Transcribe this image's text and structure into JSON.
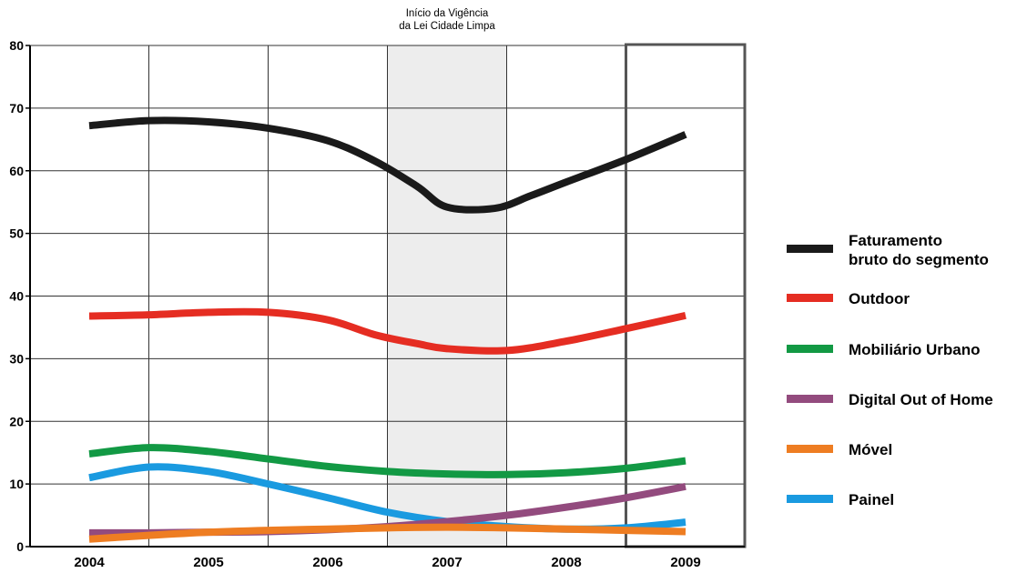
{
  "chart_data": {
    "type": "line",
    "annotation": {
      "lines": [
        "Início da Vigência",
        "da Lei Cidade Limpa"
      ],
      "shaded_period": [
        "2006.5",
        "2007.5"
      ],
      "highlighted_period": "2009"
    },
    "x": [
      "2004",
      "2005",
      "2006",
      "2007",
      "2008",
      "2009"
    ],
    "ylim": [
      0,
      80
    ],
    "yticks": [
      "0",
      "10",
      "20",
      "30",
      "40",
      "50",
      "60",
      "70",
      "80"
    ],
    "grid": true,
    "legend_position": "right",
    "series": [
      {
        "name_lines": [
          "Faturamento",
          "bruto do segmento"
        ],
        "color": "#1a1a1a",
        "points": [
          [
            2004,
            67.2
          ],
          [
            2004.5,
            68.0
          ],
          [
            2005,
            67.8
          ],
          [
            2005.5,
            66.8
          ],
          [
            2006,
            64.8
          ],
          [
            2006.4,
            61.5
          ],
          [
            2006.75,
            57.5
          ],
          [
            2007,
            54.2
          ],
          [
            2007.4,
            54.0
          ],
          [
            2007.7,
            56.0
          ],
          [
            2008,
            58.2
          ],
          [
            2008.5,
            61.8
          ],
          [
            2009,
            65.8
          ]
        ]
      },
      {
        "name_lines": [
          "Outdoor"
        ],
        "color": "#e52d22",
        "points": [
          [
            2004,
            36.8
          ],
          [
            2004.5,
            37.0
          ],
          [
            2005,
            37.4
          ],
          [
            2005.5,
            37.4
          ],
          [
            2006,
            36.2
          ],
          [
            2006.4,
            33.8
          ],
          [
            2006.75,
            32.4
          ],
          [
            2007,
            31.6
          ],
          [
            2007.5,
            31.3
          ],
          [
            2008,
            32.8
          ],
          [
            2008.5,
            34.8
          ],
          [
            2009,
            36.9
          ]
        ]
      },
      {
        "name_lines": [
          "Mobiliário Urbano"
        ],
        "color": "#129944",
        "points": [
          [
            2004,
            14.8
          ],
          [
            2004.5,
            15.8
          ],
          [
            2005,
            15.2
          ],
          [
            2005.5,
            14.0
          ],
          [
            2006,
            12.8
          ],
          [
            2006.5,
            12.0
          ],
          [
            2007,
            11.6
          ],
          [
            2007.5,
            11.5
          ],
          [
            2008,
            11.8
          ],
          [
            2008.5,
            12.5
          ],
          [
            2009,
            13.7
          ]
        ]
      },
      {
        "name_lines": [
          "Digital Out of Home"
        ],
        "color": "#934b7e",
        "points": [
          [
            2004,
            2.2
          ],
          [
            2004.5,
            2.2
          ],
          [
            2005,
            2.3
          ],
          [
            2005.5,
            2.4
          ],
          [
            2006,
            2.7
          ],
          [
            2006.5,
            3.2
          ],
          [
            2007,
            4.0
          ],
          [
            2007.5,
            5.0
          ],
          [
            2008,
            6.3
          ],
          [
            2008.5,
            7.8
          ],
          [
            2009,
            9.6
          ]
        ]
      },
      {
        "name_lines": [
          "Móvel"
        ],
        "color": "#ee7d22",
        "points": [
          [
            2004,
            1.2
          ],
          [
            2004.5,
            1.8
          ],
          [
            2005,
            2.3
          ],
          [
            2005.5,
            2.6
          ],
          [
            2006,
            2.8
          ],
          [
            2006.5,
            3.0
          ],
          [
            2007,
            3.1
          ],
          [
            2007.5,
            3.0
          ],
          [
            2008,
            2.8
          ],
          [
            2008.5,
            2.6
          ],
          [
            2009,
            2.4
          ]
        ]
      },
      {
        "name_lines": [
          "Painel"
        ],
        "color": "#1a9ae0",
        "points": [
          [
            2004,
            11.0
          ],
          [
            2004.5,
            12.7
          ],
          [
            2005,
            12.0
          ],
          [
            2005.5,
            10.0
          ],
          [
            2006,
            7.8
          ],
          [
            2006.5,
            5.5
          ],
          [
            2007,
            4.0
          ],
          [
            2007.5,
            3.2
          ],
          [
            2008,
            2.8
          ],
          [
            2008.5,
            3.0
          ],
          [
            2009,
            3.9
          ]
        ]
      }
    ]
  }
}
